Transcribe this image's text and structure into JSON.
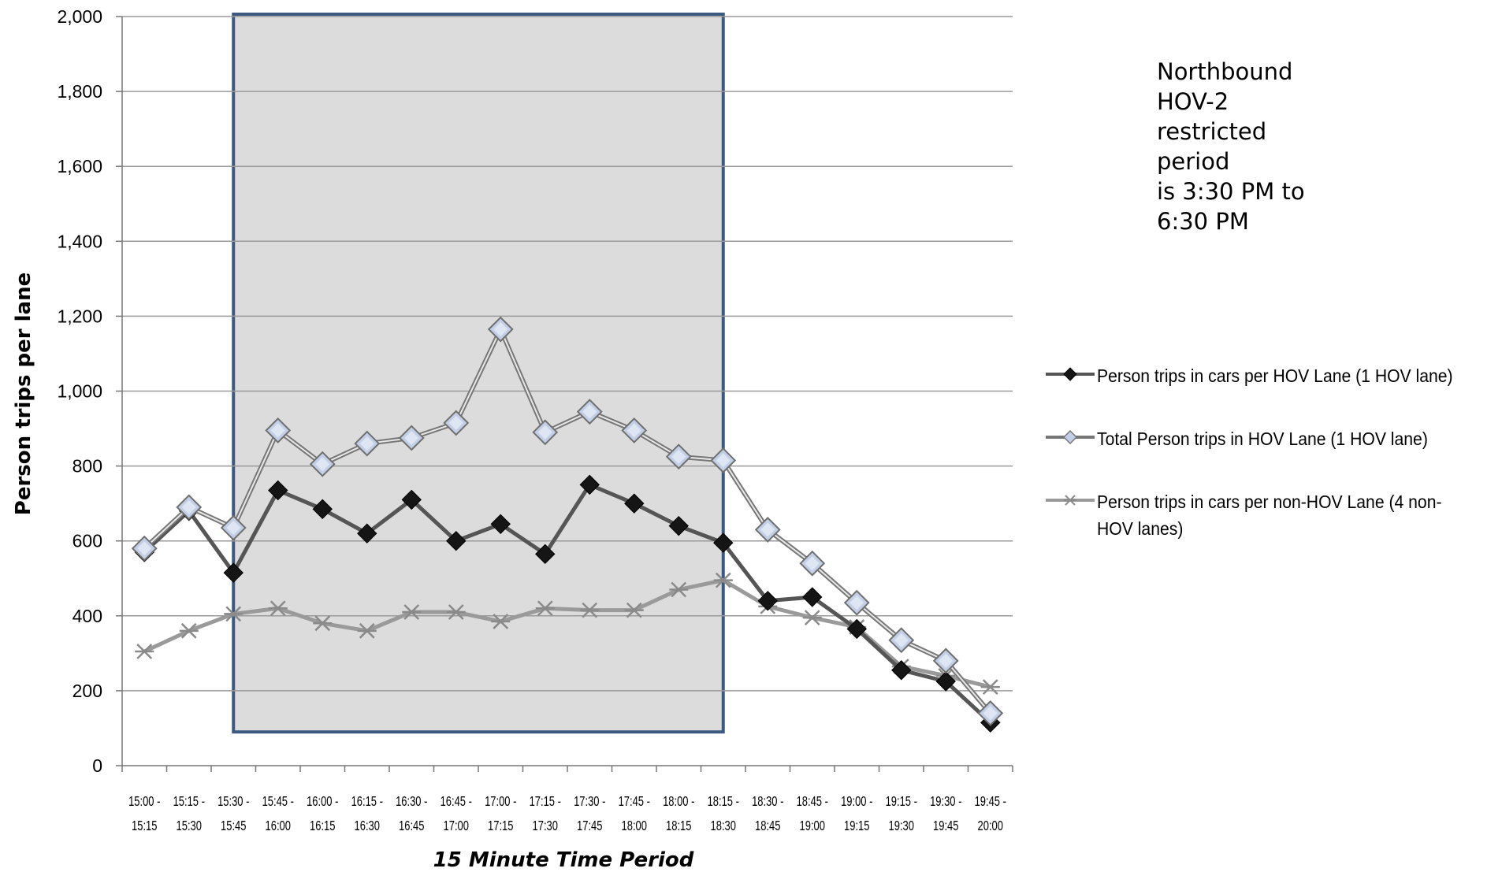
{
  "chart_data": {
    "type": "line",
    "xlabel": "15 Minute Time Period",
    "ylabel": "Person trips per lane",
    "ylim": [
      0,
      2000
    ],
    "yticks": [
      "0",
      "200",
      "400",
      "600",
      "800",
      "1,000",
      "1,200",
      "1,400",
      "1,600",
      "1,800",
      "2,000"
    ],
    "grid": "horizontal",
    "legend_position": "right",
    "categories": [
      [
        "15:00 -",
        "15:15"
      ],
      [
        "15:15 -",
        "15:30"
      ],
      [
        "15:30 -",
        "15:45"
      ],
      [
        "15:45 -",
        "16:00"
      ],
      [
        "16:00 -",
        "16:15"
      ],
      [
        "16:15 -",
        "16:30"
      ],
      [
        "16:30 -",
        "16:45"
      ],
      [
        "16:45 -",
        "17:00"
      ],
      [
        "17:00 -",
        "17:15"
      ],
      [
        "17:15 -",
        "17:30"
      ],
      [
        "17:30 -",
        "17:45"
      ],
      [
        "17:45 -",
        "18:00"
      ],
      [
        "18:00 -",
        "18:15"
      ],
      [
        "18:15 -",
        "18:30"
      ],
      [
        "18:30 -",
        "18:45"
      ],
      [
        "18:45 -",
        "19:00"
      ],
      [
        "19:00 -",
        "19:15"
      ],
      [
        "19:15 -",
        "19:30"
      ],
      [
        "19:30 -",
        "19:45"
      ],
      [
        "19:45 -",
        "20:00"
      ]
    ],
    "highlight_region": {
      "from_category": "15:30 - 15:45",
      "to_category": "18:15 - 18:30"
    },
    "annotation": [
      "Northbound",
      "HOV-2",
      "restricted",
      "period",
      "is  3:30 PM to",
      "6:30 PM"
    ],
    "series": [
      {
        "name": "Person trips in cars per HOV Lane (1 HOV lane)",
        "marker": "diamond-filled",
        "color": "#555555",
        "values": [
          570,
          680,
          515,
          735,
          685,
          620,
          710,
          600,
          645,
          565,
          750,
          700,
          640,
          595,
          440,
          450,
          365,
          255,
          225,
          115
        ]
      },
      {
        "name": "Total Person trips in HOV Lane (1 HOV lane)",
        "marker": "diamond-light",
        "color": "#777777",
        "values": [
          580,
          690,
          635,
          895,
          805,
          860,
          875,
          915,
          1165,
          890,
          945,
          895,
          825,
          815,
          630,
          540,
          435,
          335,
          280,
          140
        ]
      },
      {
        "name": "Person trips in cars per non-HOV Lane (4 non-HOV lanes)",
        "marker": "asterisk",
        "color": "#9a9a9a",
        "values": [
          305,
          360,
          405,
          420,
          380,
          360,
          410,
          410,
          385,
          420,
          415,
          415,
          470,
          495,
          425,
          395,
          370,
          265,
          240,
          210
        ]
      }
    ]
  },
  "legend": {
    "items": [
      {
        "label": "Person trips in cars per HOV Lane (1 HOV lane)"
      },
      {
        "label": "Total Person trips in HOV Lane (1 HOV lane)"
      },
      {
        "label": "Person trips in cars per non-HOV Lane (4 non-HOV lanes)"
      }
    ]
  },
  "colors": {
    "highlight_fill": "#dcdcdc",
    "highlight_border": "#3c5a80",
    "grid": "#9a9a9a",
    "diamond_dark": "#151515",
    "diamond_light": "#c3cfe6"
  }
}
